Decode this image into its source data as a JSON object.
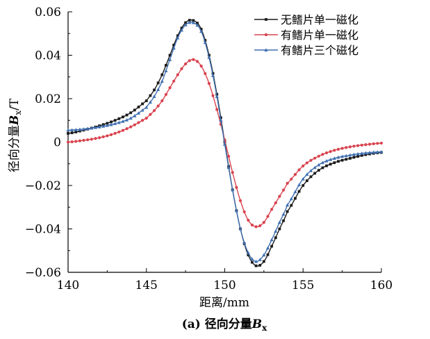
{
  "chart_data": {
    "type": "line",
    "caption_prefix": "(a) 径向分量",
    "caption_var": "B",
    "caption_sub": "x",
    "xlabel": "距离/mm",
    "ylabel_prefix": "径向分量",
    "ylabel_var": "B",
    "ylabel_sub": "x",
    "ylabel_unit": "/T",
    "xlim": [
      140,
      160
    ],
    "ylim": [
      -0.06,
      0.06
    ],
    "xticks": [
      140,
      145,
      150,
      155,
      160
    ],
    "xtick_labels": [
      "140",
      "145",
      "150",
      "155",
      "160"
    ],
    "yticks": [
      -0.06,
      -0.04,
      -0.02,
      0,
      0.02,
      0.04,
      0.06
    ],
    "ytick_labels": [
      "−0.06",
      "−0.04",
      "−0.02",
      "0",
      "0.02",
      "0.04",
      "0.06"
    ],
    "legend_position": "top-right",
    "series": [
      {
        "name": "无鳍片单一磁化",
        "color": "#1a1a1a",
        "marker": "square",
        "x": [
          140,
          141,
          142,
          143,
          144,
          145,
          145.5,
          146,
          146.5,
          147,
          147.5,
          148,
          148.5,
          149,
          149.5,
          150,
          150.5,
          151,
          151.5,
          152,
          152.5,
          153,
          153.5,
          154,
          155,
          156,
          157,
          158,
          159,
          160
        ],
        "y": [
          0.004,
          0.0055,
          0.0075,
          0.01,
          0.0135,
          0.019,
          0.024,
          0.031,
          0.04,
          0.049,
          0.055,
          0.056,
          0.052,
          0.04,
          0.022,
          0.0,
          -0.022,
          -0.04,
          -0.052,
          -0.057,
          -0.055,
          -0.048,
          -0.04,
          -0.032,
          -0.02,
          -0.013,
          -0.0095,
          -0.0075,
          -0.0058,
          -0.0048
        ]
      },
      {
        "name": "有鳍片单一磁化",
        "color": "#d9434f",
        "marker": "circle",
        "x": [
          140,
          141,
          142,
          143,
          144,
          145,
          145.5,
          146,
          146.5,
          147,
          147.5,
          148,
          148.5,
          149,
          149.5,
          150,
          150.5,
          151,
          151.5,
          152,
          152.5,
          153,
          153.5,
          154,
          155,
          156,
          157,
          158,
          159,
          160
        ],
        "y": [
          0.0,
          0.0008,
          0.002,
          0.004,
          0.007,
          0.011,
          0.0145,
          0.019,
          0.025,
          0.031,
          0.036,
          0.038,
          0.035,
          0.027,
          0.015,
          0.001,
          -0.014,
          -0.027,
          -0.036,
          -0.039,
          -0.037,
          -0.031,
          -0.025,
          -0.019,
          -0.011,
          -0.0065,
          -0.0038,
          -0.0022,
          -0.0012,
          -0.0005
        ]
      },
      {
        "name": "有鳍片三个磁化",
        "color": "#3f6fb0",
        "marker": "triangle",
        "x": [
          140,
          141,
          142,
          143,
          144,
          145,
          145.5,
          146,
          146.5,
          147,
          147.5,
          148,
          148.5,
          149,
          149.5,
          150,
          150.5,
          151,
          151.5,
          152,
          152.5,
          153,
          153.5,
          154,
          155,
          156,
          157,
          158,
          159,
          160
        ],
        "y": [
          0.0055,
          0.006,
          0.007,
          0.0085,
          0.011,
          0.016,
          0.021,
          0.028,
          0.038,
          0.048,
          0.054,
          0.055,
          0.051,
          0.039,
          0.021,
          -0.001,
          -0.022,
          -0.04,
          -0.051,
          -0.055,
          -0.052,
          -0.045,
          -0.037,
          -0.029,
          -0.017,
          -0.0105,
          -0.0075,
          -0.006,
          -0.005,
          -0.0045
        ]
      }
    ]
  }
}
